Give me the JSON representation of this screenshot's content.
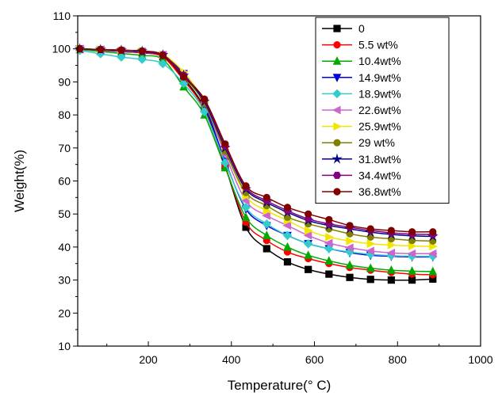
{
  "chart_data": {
    "type": "line",
    "xlabel": "Temperature(° C)",
    "ylabel": "Weight(%)",
    "xlim": [
      30,
      1000
    ],
    "ylim": [
      10,
      110
    ],
    "x_ticks": [
      200,
      400,
      600,
      800,
      1000
    ],
    "y_ticks": [
      10,
      20,
      30,
      40,
      50,
      60,
      70,
      80,
      90,
      100,
      110
    ],
    "legend_position": "top-right",
    "grid": false,
    "x": [
      35,
      85,
      135,
      185,
      235,
      285,
      335,
      385,
      435,
      485,
      535,
      585,
      635,
      685,
      735,
      785,
      835,
      885
    ],
    "series": [
      {
        "name": "0",
        "color": "#000000",
        "marker": "square",
        "values": [
          100,
          99.6,
          99.2,
          98.8,
          97.6,
          91,
          82,
          64.5,
          46,
          39.5,
          35.5,
          33.2,
          31.8,
          30.8,
          30.2,
          30.0,
          30.0,
          30.3
        ]
      },
      {
        "name": "5.5  wt%",
        "color": "#ff0000",
        "marker": "circle",
        "values": [
          100,
          99.6,
          99.2,
          98.8,
          97.5,
          90.5,
          81.5,
          64.5,
          47.5,
          42.0,
          38.5,
          36.5,
          35.0,
          33.8,
          33.0,
          32.3,
          31.8,
          31.6
        ]
      },
      {
        "name": "10.4wt%",
        "color": "#00aa00",
        "marker": "triangle-up",
        "values": [
          99.8,
          99.2,
          98.6,
          98.0,
          96.8,
          88.5,
          80.0,
          64.0,
          49.0,
          43.5,
          40.0,
          37.5,
          35.8,
          34.5,
          33.6,
          33.0,
          32.7,
          32.6
        ]
      },
      {
        "name": "14.9wt%",
        "color": "#0000dd",
        "marker": "triangle-down",
        "values": [
          100,
          99.7,
          99.3,
          99.0,
          98.0,
          92.5,
          83.0,
          66.0,
          51.5,
          46.5,
          43.5,
          41.0,
          39.5,
          38.3,
          37.5,
          37.2,
          37.0,
          37.0
        ]
      },
      {
        "name": "18.9wt%",
        "color": "#33cccc",
        "marker": "diamond",
        "values": [
          99.5,
          98.5,
          97.5,
          96.8,
          95.5,
          89.5,
          81.0,
          65.5,
          52.0,
          47.0,
          43.5,
          41.0,
          39.5,
          38.5,
          37.8,
          37.4,
          37.2,
          37.2
        ]
      },
      {
        "name": "22.6wt%",
        "color": "#cc66cc",
        "marker": "triangle-left",
        "values": [
          100,
          99.8,
          99.5,
          99.2,
          98.2,
          92.0,
          83.5,
          68.0,
          54.0,
          49.5,
          46.5,
          43.5,
          41.2,
          39.8,
          38.8,
          38.2,
          38.0,
          38.0
        ]
      },
      {
        "name": "25.9wt%",
        "color": "#f2e600",
        "marker": "triangle-right",
        "values": [
          100,
          99.8,
          99.5,
          99.3,
          98.3,
          93.0,
          84.0,
          69.5,
          55.5,
          51.0,
          48.0,
          45.0,
          43.0,
          41.8,
          41.0,
          40.6,
          40.3,
          40.2
        ]
      },
      {
        "name": "29   wt%",
        "color": "#808000",
        "marker": "circle",
        "values": [
          100,
          99.8,
          99.6,
          99.3,
          98.0,
          91.5,
          83.5,
          69.0,
          56.5,
          52.5,
          49.0,
          47.0,
          45.5,
          44.0,
          43.0,
          42.5,
          42.0,
          41.8
        ]
      },
      {
        "name": "31.8wt%",
        "color": "#000080",
        "marker": "star",
        "values": [
          100,
          99.8,
          99.6,
          99.3,
          98.2,
          92.0,
          84.0,
          70.0,
          57.5,
          53.5,
          50.5,
          48.0,
          46.5,
          45.5,
          44.5,
          43.8,
          43.4,
          43.2
        ]
      },
      {
        "name": "34.4wt%",
        "color": "#800080",
        "marker": "hexagon",
        "values": [
          100,
          99.8,
          99.6,
          99.3,
          98.2,
          92.0,
          84.5,
          70.5,
          58.0,
          54.0,
          51.0,
          48.5,
          47.0,
          46.0,
          45.0,
          44.3,
          43.9,
          43.8
        ]
      },
      {
        "name": "36.8wt%",
        "color": "#800000",
        "marker": "circle",
        "values": [
          100,
          99.8,
          99.6,
          99.3,
          98.0,
          91.5,
          84.8,
          71.2,
          58.5,
          55.0,
          52.0,
          50.0,
          48.3,
          46.5,
          45.5,
          45.0,
          44.6,
          44.6
        ]
      }
    ]
  }
}
